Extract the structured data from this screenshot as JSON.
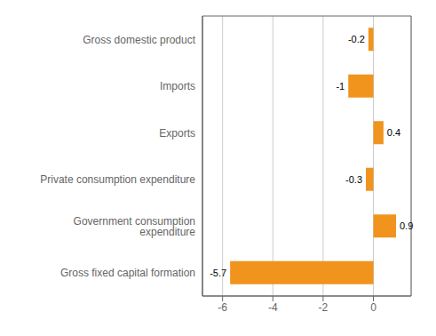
{
  "chart_data": {
    "type": "bar",
    "orientation": "horizontal",
    "categories": [
      "Gross fixed capital formation",
      "Government consumption expenditure",
      "Private consumption expenditure",
      "Exports",
      "Imports",
      "Gross domestic product"
    ],
    "values": [
      -5.7,
      0.9,
      -0.3,
      0.4,
      -1.0,
      -0.2
    ],
    "color": "#f0941e",
    "xlim": [
      -6.8,
      1.5
    ],
    "xticks": [
      -6,
      -4,
      -2,
      0
    ],
    "grid": true,
    "data_labels": true
  }
}
